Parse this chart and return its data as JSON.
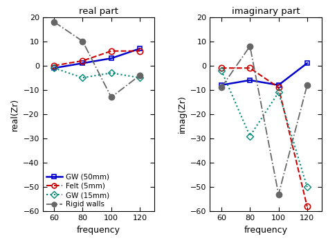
{
  "frequencies": [
    60,
    80,
    100,
    120
  ],
  "real": {
    "GW_50mm": [
      -1,
      1,
      3,
      7
    ],
    "Felt_5mm": [
      0,
      2,
      6,
      6
    ],
    "GW_15mm": [
      -1,
      -5,
      -3,
      -5
    ],
    "Rigid_walls": [
      18,
      10,
      -13,
      -4
    ]
  },
  "imag": {
    "GW_50mm": [
      -8,
      -6,
      -8,
      1
    ],
    "Felt_5mm": [
      -1,
      -1,
      -9,
      -58
    ],
    "GW_15mm": [
      -2,
      -29,
      -11,
      -50
    ],
    "Rigid_walls": [
      -9,
      8,
      -53,
      -8
    ]
  },
  "colors": {
    "GW_50mm": "#0000cc",
    "Felt_5mm": "#cc0000",
    "GW_15mm": "#008877",
    "Rigid_walls": "#666666"
  },
  "labels": {
    "GW_50mm": "GW (50mm)",
    "Felt_5mm": "Felt (5mm)",
    "GW_15mm": "GW (15mm)",
    "Rigid_walls": "Rigid walls"
  },
  "ylim": [
    -60,
    20
  ],
  "yticks": [
    -60,
    -50,
    -40,
    -30,
    -20,
    -10,
    0,
    10,
    20
  ],
  "xticks": [
    60,
    80,
    100,
    120
  ],
  "title_real": "real part",
  "title_imag": "imaginary part",
  "xlabel": "frequency",
  "ylabel_real": "real(Zr)",
  "ylabel_imag": "imag(Zr)",
  "figsize": [
    4.74,
    3.51
  ],
  "dpi": 100
}
